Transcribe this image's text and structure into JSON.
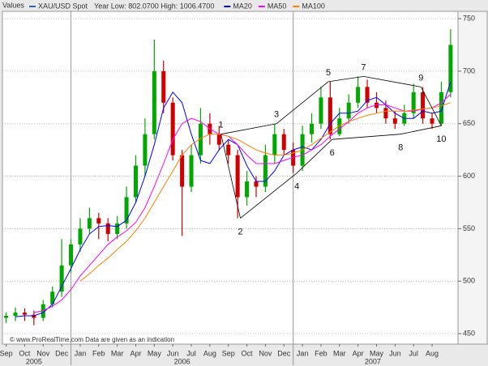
{
  "chart_data": {
    "type": "candlestick",
    "label": "Values",
    "note": "Year Low: 802.0700 High: 1006.4700",
    "footer": "© www.ProRealTime.com Data are given as an indication",
    "price": {
      "name": "XAU/USD Spot",
      "color": "#3060c0",
      "up_color": "#00a800",
      "down_color": "#d00000",
      "x": [
        0.5,
        1.0,
        1.5,
        2.0,
        2.5,
        3.0,
        3.5,
        4.0,
        4.5,
        5.0,
        5.5,
        6.0,
        6.5,
        7.0,
        7.5,
        8.0,
        8.5,
        9.0,
        9.5,
        10.0,
        10.5,
        11.0,
        11.5,
        12.0,
        12.5,
        13.0,
        13.5,
        14.0,
        14.5,
        15.0,
        15.5,
        16.0,
        16.5,
        17.0,
        17.5,
        18.0,
        18.5,
        19.0,
        19.5,
        20.0,
        20.5,
        21.0,
        21.5,
        22.0,
        22.5,
        23.0,
        23.5,
        24.0,
        24.5
      ],
      "open": [
        465,
        467,
        470,
        468,
        465,
        478,
        490,
        515,
        535,
        550,
        560,
        555,
        545,
        555,
        580,
        610,
        640,
        700,
        670,
        620,
        590,
        620,
        650,
        640,
        630,
        620,
        580,
        595,
        590,
        620,
        640,
        625,
        610,
        640,
        650,
        675,
        640,
        655,
        670,
        685,
        670,
        665,
        655,
        650,
        660,
        680,
        655,
        650,
        680
      ],
      "high": [
        470,
        475,
        474,
        472,
        482,
        495,
        540,
        540,
        560,
        570,
        565,
        560,
        562,
        590,
        620,
        655,
        730,
        710,
        675,
        625,
        630,
        665,
        660,
        648,
        635,
        625,
        605,
        600,
        630,
        650,
        645,
        632,
        648,
        660,
        685,
        690,
        665,
        678,
        695,
        692,
        680,
        672,
        662,
        668,
        688,
        685,
        660,
        690,
        740
      ],
      "low": [
        460,
        462,
        462,
        458,
        462,
        475,
        485,
        508,
        528,
        545,
        540,
        538,
        540,
        550,
        575,
        600,
        635,
        660,
        615,
        543,
        585,
        612,
        630,
        625,
        612,
        560,
        572,
        580,
        585,
        612,
        620,
        603,
        605,
        632,
        645,
        635,
        638,
        650,
        665,
        665,
        660,
        650,
        645,
        648,
        655,
        650,
        645,
        648,
        675
      ],
      "close": [
        467,
        470,
        468,
        465,
        478,
        490,
        515,
        535,
        550,
        560,
        555,
        545,
        555,
        580,
        610,
        640,
        700,
        670,
        620,
        590,
        620,
        650,
        640,
        630,
        620,
        580,
        595,
        590,
        620,
        640,
        625,
        610,
        640,
        650,
        675,
        640,
        655,
        670,
        685,
        670,
        665,
        655,
        650,
        660,
        680,
        655,
        650,
        680,
        725
      ]
    },
    "series": [
      {
        "name": "MA20",
        "color": "#0000ff",
        "x": [
          1.0,
          1.5,
          2.0,
          2.5,
          3.0,
          3.5,
          4.0,
          4.5,
          5.0,
          5.5,
          6.0,
          6.5,
          7.0,
          7.5,
          8.0,
          8.5,
          9.0,
          9.5,
          10.0,
          10.5,
          11.0,
          11.5,
          12.0,
          12.5,
          13.0,
          13.5,
          14.0,
          14.5,
          15.0,
          15.5,
          16.0,
          16.5,
          17.0,
          17.5,
          18.0,
          18.5,
          19.0,
          19.5,
          20.0,
          20.5,
          21.0,
          21.5,
          22.0,
          22.5,
          23.0,
          23.5,
          24.0,
          24.5
        ],
        "values": [
          466,
          467,
          467,
          470,
          478,
          495,
          512,
          530,
          545,
          552,
          553,
          552,
          558,
          575,
          600,
          630,
          665,
          680,
          670,
          640,
          615,
          612,
          625,
          635,
          630,
          610,
          595,
          595,
          605,
          620,
          625,
          628,
          625,
          635,
          650,
          660,
          660,
          662,
          672,
          675,
          668,
          660,
          655,
          655,
          662,
          660,
          662,
          690
        ]
      },
      {
        "name": "MA50",
        "color": "#ff00ff",
        "x": [
          2.0,
          2.5,
          3.0,
          3.5,
          4.0,
          4.5,
          5.0,
          5.5,
          6.0,
          6.5,
          7.0,
          7.5,
          8.0,
          8.5,
          9.0,
          9.5,
          10.0,
          10.5,
          11.0,
          11.5,
          12.0,
          12.5,
          13.0,
          13.5,
          14.0,
          14.5,
          15.0,
          15.5,
          16.0,
          16.5,
          17.0,
          17.5,
          18.0,
          18.5,
          19.0,
          19.5,
          20.0,
          20.5,
          21.0,
          21.5,
          22.0,
          22.5,
          23.0,
          23.5,
          24.0,
          24.5
        ],
        "values": [
          470,
          472,
          476,
          482,
          492,
          505,
          515,
          525,
          535,
          542,
          548,
          556,
          570,
          590,
          612,
          635,
          650,
          655,
          652,
          645,
          640,
          638,
          630,
          620,
          612,
          612,
          612,
          615,
          618,
          620,
          625,
          630,
          638,
          645,
          652,
          660,
          665,
          668,
          668,
          665,
          662,
          662,
          664,
          665,
          670,
          678
        ]
      },
      {
        "name": "MA100",
        "color": "#ff8000",
        "x": [
          4.5,
          5.0,
          5.5,
          6.0,
          6.5,
          7.0,
          7.5,
          8.0,
          8.5,
          9.0,
          9.5,
          10.0,
          10.5,
          11.0,
          11.5,
          12.0,
          12.5,
          13.0,
          13.5,
          14.0,
          14.5,
          15.0,
          15.5,
          16.0,
          16.5,
          17.0,
          17.5,
          18.0,
          18.5,
          19.0,
          19.5,
          20.0,
          20.5,
          21.0,
          21.5,
          22.0,
          22.5,
          23.0,
          23.5,
          24.0,
          24.5
        ],
        "values": [
          500,
          507,
          515,
          522,
          530,
          538,
          548,
          560,
          575,
          590,
          605,
          620,
          630,
          636,
          640,
          640,
          638,
          635,
          630,
          625,
          622,
          620,
          620,
          622,
          625,
          630,
          636,
          642,
          648,
          652,
          655,
          658,
          660,
          662,
          662,
          662,
          663,
          664,
          665,
          667,
          670
        ]
      }
    ],
    "annotations": [
      {
        "label": "1",
        "x": 12.1,
        "y": 640
      },
      {
        "label": "2",
        "x": 13.15,
        "y": 560
      },
      {
        "label": "3",
        "x": 15.1,
        "y": 650
      },
      {
        "label": "4",
        "x": 16.2,
        "y": 603
      },
      {
        "label": "5",
        "x": 17.9,
        "y": 690
      },
      {
        "label": "6",
        "x": 18.1,
        "y": 635
      },
      {
        "label": "7",
        "x": 19.8,
        "y": 695
      },
      {
        "label": "8",
        "x": 21.8,
        "y": 640
      },
      {
        "label": "9",
        "x": 22.9,
        "y": 685
      },
      {
        "label": "10",
        "x": 24.0,
        "y": 648
      }
    ],
    "xlim": [
      0.3,
      24.9
    ],
    "ylim": [
      440,
      757
    ],
    "yticks": [
      450,
      500,
      550,
      600,
      650,
      700,
      750
    ],
    "xticks": [
      {
        "value": 0.5,
        "label": "Sep"
      },
      {
        "value": 1.5,
        "label": "Oct"
      },
      {
        "value": 2.5,
        "label": "Nov"
      },
      {
        "value": 3.5,
        "label": "Dec"
      },
      {
        "value": 4.5,
        "label": "Jan"
      },
      {
        "value": 5.5,
        "label": "Feb"
      },
      {
        "value": 6.5,
        "label": "Mar"
      },
      {
        "value": 7.5,
        "label": "Apr"
      },
      {
        "value": 8.5,
        "label": "May"
      },
      {
        "value": 9.5,
        "label": "Jun"
      },
      {
        "value": 10.5,
        "label": "Jul"
      },
      {
        "value": 11.5,
        "label": "Aug"
      },
      {
        "value": 12.5,
        "label": "Sep"
      },
      {
        "value": 13.5,
        "label": "Oct"
      },
      {
        "value": 14.5,
        "label": "Nov"
      },
      {
        "value": 15.5,
        "label": "Dec"
      },
      {
        "value": 16.5,
        "label": "Jan"
      },
      {
        "value": 17.5,
        "label": "Feb"
      },
      {
        "value": 18.5,
        "label": "Mar"
      },
      {
        "value": 19.5,
        "label": "Apr"
      },
      {
        "value": 20.5,
        "label": "May"
      },
      {
        "value": 21.5,
        "label": "Jun"
      },
      {
        "value": 22.5,
        "label": "Jul"
      },
      {
        "value": 23.5,
        "label": "Aug"
      }
    ],
    "years": [
      {
        "value": 2.0,
        "label": "2005"
      },
      {
        "value": 10.0,
        "label": "2006"
      },
      {
        "value": 20.3,
        "label": "2007"
      }
    ],
    "xgrid": [
      4,
      16
    ],
    "grid": true
  }
}
